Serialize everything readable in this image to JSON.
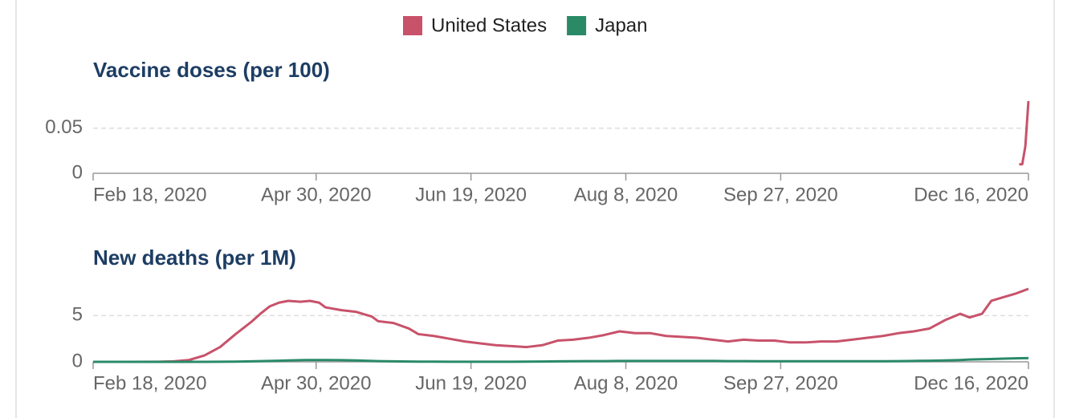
{
  "chart_data": [
    {
      "type": "line",
      "title": "Vaccine doses (per 100)",
      "x": [
        "2020-12-13",
        "2020-12-14",
        "2020-12-15",
        "2020-12-16"
      ],
      "series": [
        {
          "name": "United States",
          "color": "#c8526a",
          "values": [
            0.01,
            0.01,
            0.03,
            0.08
          ]
        }
      ],
      "xlim": [
        "2020-02-18",
        "2020-12-16"
      ],
      "xticks": [
        {
          "value": "2020-02-18",
          "label": "Feb 18, 2020"
        },
        {
          "value": "2020-04-30",
          "label": "Apr 30, 2020"
        },
        {
          "value": "2020-06-19",
          "label": "Jun 19, 2020"
        },
        {
          "value": "2020-08-08",
          "label": "Aug 8, 2020"
        },
        {
          "value": "2020-09-27",
          "label": "Sep 27, 2020"
        },
        {
          "value": "2020-12-16",
          "label": "Dec 16, 2020"
        }
      ],
      "ylim": [
        0,
        0.08
      ],
      "yticks": [
        0,
        0.05
      ],
      "grid": true
    },
    {
      "type": "line",
      "title": "New deaths (per 1M)",
      "x": [
        "2020-02-18",
        "2020-03-01",
        "2020-03-10",
        "2020-03-15",
        "2020-03-20",
        "2020-03-25",
        "2020-03-30",
        "2020-04-04",
        "2020-04-09",
        "2020-04-12",
        "2020-04-15",
        "2020-04-18",
        "2020-04-21",
        "2020-04-25",
        "2020-04-28",
        "2020-05-01",
        "2020-05-03",
        "2020-05-08",
        "2020-05-13",
        "2020-05-18",
        "2020-05-20",
        "2020-05-25",
        "2020-05-30",
        "2020-06-02",
        "2020-06-07",
        "2020-06-12",
        "2020-06-17",
        "2020-06-22",
        "2020-06-27",
        "2020-07-02",
        "2020-07-07",
        "2020-07-12",
        "2020-07-17",
        "2020-07-22",
        "2020-07-27",
        "2020-08-01",
        "2020-08-06",
        "2020-08-11",
        "2020-08-16",
        "2020-08-21",
        "2020-08-26",
        "2020-08-31",
        "2020-09-05",
        "2020-09-10",
        "2020-09-15",
        "2020-09-20",
        "2020-09-25",
        "2020-09-30",
        "2020-10-05",
        "2020-10-10",
        "2020-10-15",
        "2020-10-20",
        "2020-10-25",
        "2020-10-30",
        "2020-11-04",
        "2020-11-09",
        "2020-11-14",
        "2020-11-19",
        "2020-11-24",
        "2020-11-27",
        "2020-12-01",
        "2020-12-04",
        "2020-12-08",
        "2020-12-12",
        "2020-12-16"
      ],
      "series": [
        {
          "name": "United States",
          "color": "#c8526a",
          "values": [
            0,
            0,
            0.01,
            0.05,
            0.2,
            0.7,
            1.6,
            3.0,
            4.3,
            5.2,
            6.0,
            6.4,
            6.6,
            6.5,
            6.6,
            6.4,
            5.9,
            5.6,
            5.4,
            4.9,
            4.4,
            4.2,
            3.6,
            3.0,
            2.8,
            2.5,
            2.2,
            2.0,
            1.8,
            1.7,
            1.6,
            1.8,
            2.3,
            2.4,
            2.6,
            2.9,
            3.3,
            3.1,
            3.1,
            2.8,
            2.7,
            2.6,
            2.4,
            2.2,
            2.4,
            2.3,
            2.3,
            2.1,
            2.1,
            2.2,
            2.2,
            2.4,
            2.6,
            2.8,
            3.1,
            3.3,
            3.6,
            4.5,
            5.2,
            4.8,
            5.2,
            6.6,
            7.0,
            7.4,
            7.9
          ]
        },
        {
          "name": "Japan",
          "color": "#2a8a68",
          "values": [
            0,
            0,
            0,
            0,
            0,
            0,
            0.01,
            0.02,
            0.05,
            0.08,
            0.1,
            0.12,
            0.15,
            0.18,
            0.2,
            0.2,
            0.2,
            0.18,
            0.15,
            0.1,
            0.08,
            0.05,
            0.03,
            0.02,
            0.02,
            0.01,
            0.01,
            0.01,
            0.01,
            0.01,
            0.02,
            0.03,
            0.05,
            0.06,
            0.08,
            0.08,
            0.1,
            0.1,
            0.1,
            0.1,
            0.1,
            0.1,
            0.1,
            0.08,
            0.08,
            0.07,
            0.07,
            0.07,
            0.07,
            0.06,
            0.06,
            0.06,
            0.07,
            0.07,
            0.08,
            0.1,
            0.12,
            0.15,
            0.2,
            0.25,
            0.28,
            0.3,
            0.35,
            0.38,
            0.4
          ]
        }
      ],
      "xlim": [
        "2020-02-18",
        "2020-12-16"
      ],
      "xticks": [
        {
          "value": "2020-02-18",
          "label": "Feb 18, 2020"
        },
        {
          "value": "2020-04-30",
          "label": "Apr 30, 2020"
        },
        {
          "value": "2020-06-19",
          "label": "Jun 19, 2020"
        },
        {
          "value": "2020-08-08",
          "label": "Aug 8, 2020"
        },
        {
          "value": "2020-09-27",
          "label": "Sep 27, 2020"
        },
        {
          "value": "2020-12-16",
          "label": "Dec 16, 2020"
        }
      ],
      "ylim": [
        0,
        7.9
      ],
      "yticks": [
        0,
        5
      ],
      "grid": true
    }
  ]
}
